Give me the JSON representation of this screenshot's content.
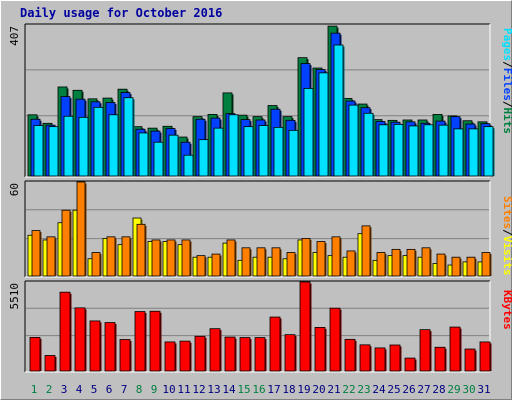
{
  "title": "Daily usage for October 2016",
  "colors": {
    "hits": "#008040",
    "files": "#0040FF",
    "pages": "#00E0FF",
    "visits": "#FFFF00",
    "sites": "#FF8000",
    "kbytes": "#FF0000",
    "weekend": "#008040",
    "weekday": "#000080"
  },
  "chart_data": [
    {
      "type": "bar",
      "panel": "hits-files-pages",
      "categories": [
        "1",
        "2",
        "3",
        "4",
        "5",
        "6",
        "7",
        "8",
        "9",
        "10",
        "11",
        "12",
        "13",
        "14",
        "15",
        "16",
        "17",
        "18",
        "19",
        "20",
        "21",
        "22",
        "23",
        "24",
        "25",
        "26",
        "27",
        "28",
        "29",
        "30",
        "31"
      ],
      "weekend_days": [
        "1",
        "2",
        "8",
        "9",
        "15",
        "16",
        "22",
        "23",
        "29",
        "30"
      ],
      "ymax_label": "407",
      "ylim": [
        0,
        407
      ],
      "grid": true,
      "series": [
        {
          "name": "Hits",
          "values": [
            165,
            142,
            240,
            231,
            208,
            210,
            234,
            133,
            129,
            134,
            105,
            160,
            166,
            224,
            164,
            160,
            190,
            160,
            319,
            291,
            404,
            209,
            194,
            152,
            150,
            151,
            151,
            166,
            162,
            149,
            146
          ]
        },
        {
          "name": "Files",
          "values": [
            153,
            137,
            214,
            207,
            200,
            198,
            225,
            126,
            121,
            128,
            91,
            153,
            156,
            168,
            152,
            151,
            180,
            150,
            303,
            287,
            385,
            202,
            184,
            147,
            145,
            146,
            142,
            148,
            160,
            140,
            141
          ]
        },
        {
          "name": "Pages",
          "values": [
            136,
            133,
            161,
            158,
            185,
            165,
            211,
            116,
            91,
            110,
            56,
            98,
            129,
            165,
            133,
            136,
            131,
            123,
            236,
            278,
            353,
            191,
            169,
            138,
            139,
            135,
            138,
            137,
            127,
            127,
            133
          ]
        }
      ],
      "legend": [
        "Pages",
        "Files",
        "Hits"
      ]
    },
    {
      "type": "bar",
      "panel": "visits-sites",
      "categories": [
        "1",
        "2",
        "3",
        "4",
        "5",
        "6",
        "7",
        "8",
        "9",
        "10",
        "11",
        "12",
        "13",
        "14",
        "15",
        "16",
        "17",
        "18",
        "19",
        "20",
        "21",
        "22",
        "23",
        "24",
        "25",
        "26",
        "27",
        "28",
        "29",
        "30",
        "31"
      ],
      "ymax_label": "60",
      "ylim": [
        0,
        60
      ],
      "grid": true,
      "series": [
        {
          "name": "Visits",
          "values": [
            26,
            23,
            34,
            42,
            11,
            24,
            20,
            37,
            22,
            22,
            20,
            12,
            12,
            21,
            10,
            12,
            12,
            11,
            23,
            15,
            13,
            12,
            27,
            10,
            13,
            13,
            12,
            8,
            7,
            9,
            9
          ]
        },
        {
          "name": "Sites",
          "values": [
            29,
            25,
            42,
            60,
            15,
            25,
            25,
            33,
            23,
            23,
            23,
            13,
            14,
            23,
            18,
            18,
            18,
            15,
            24,
            22,
            25,
            16,
            32,
            15,
            17,
            17,
            18,
            14,
            12,
            12,
            15
          ]
        }
      ],
      "legend": [
        "Sites",
        "Visits"
      ]
    },
    {
      "type": "bar",
      "panel": "kbytes",
      "categories": [
        "1",
        "2",
        "3",
        "4",
        "5",
        "6",
        "7",
        "8",
        "9",
        "10",
        "11",
        "12",
        "13",
        "14",
        "15",
        "16",
        "17",
        "18",
        "19",
        "20",
        "21",
        "22",
        "23",
        "24",
        "25",
        "26",
        "27",
        "28",
        "29",
        "30",
        "31"
      ],
      "ymax_label": "5510",
      "ylim": [
        0,
        5510
      ],
      "grid": true,
      "series": [
        {
          "name": "KBytes",
          "values": [
            2080,
            960,
            4880,
            3910,
            3100,
            3000,
            1950,
            3680,
            3700,
            1800,
            1850,
            2150,
            2620,
            2100,
            2070,
            2070,
            3340,
            2250,
            5510,
            2700,
            3890,
            1960,
            1620,
            1430,
            1610,
            800,
            2560,
            1470,
            2720,
            1360,
            1800
          ]
        }
      ],
      "legend": [
        "KBytes"
      ]
    }
  ]
}
